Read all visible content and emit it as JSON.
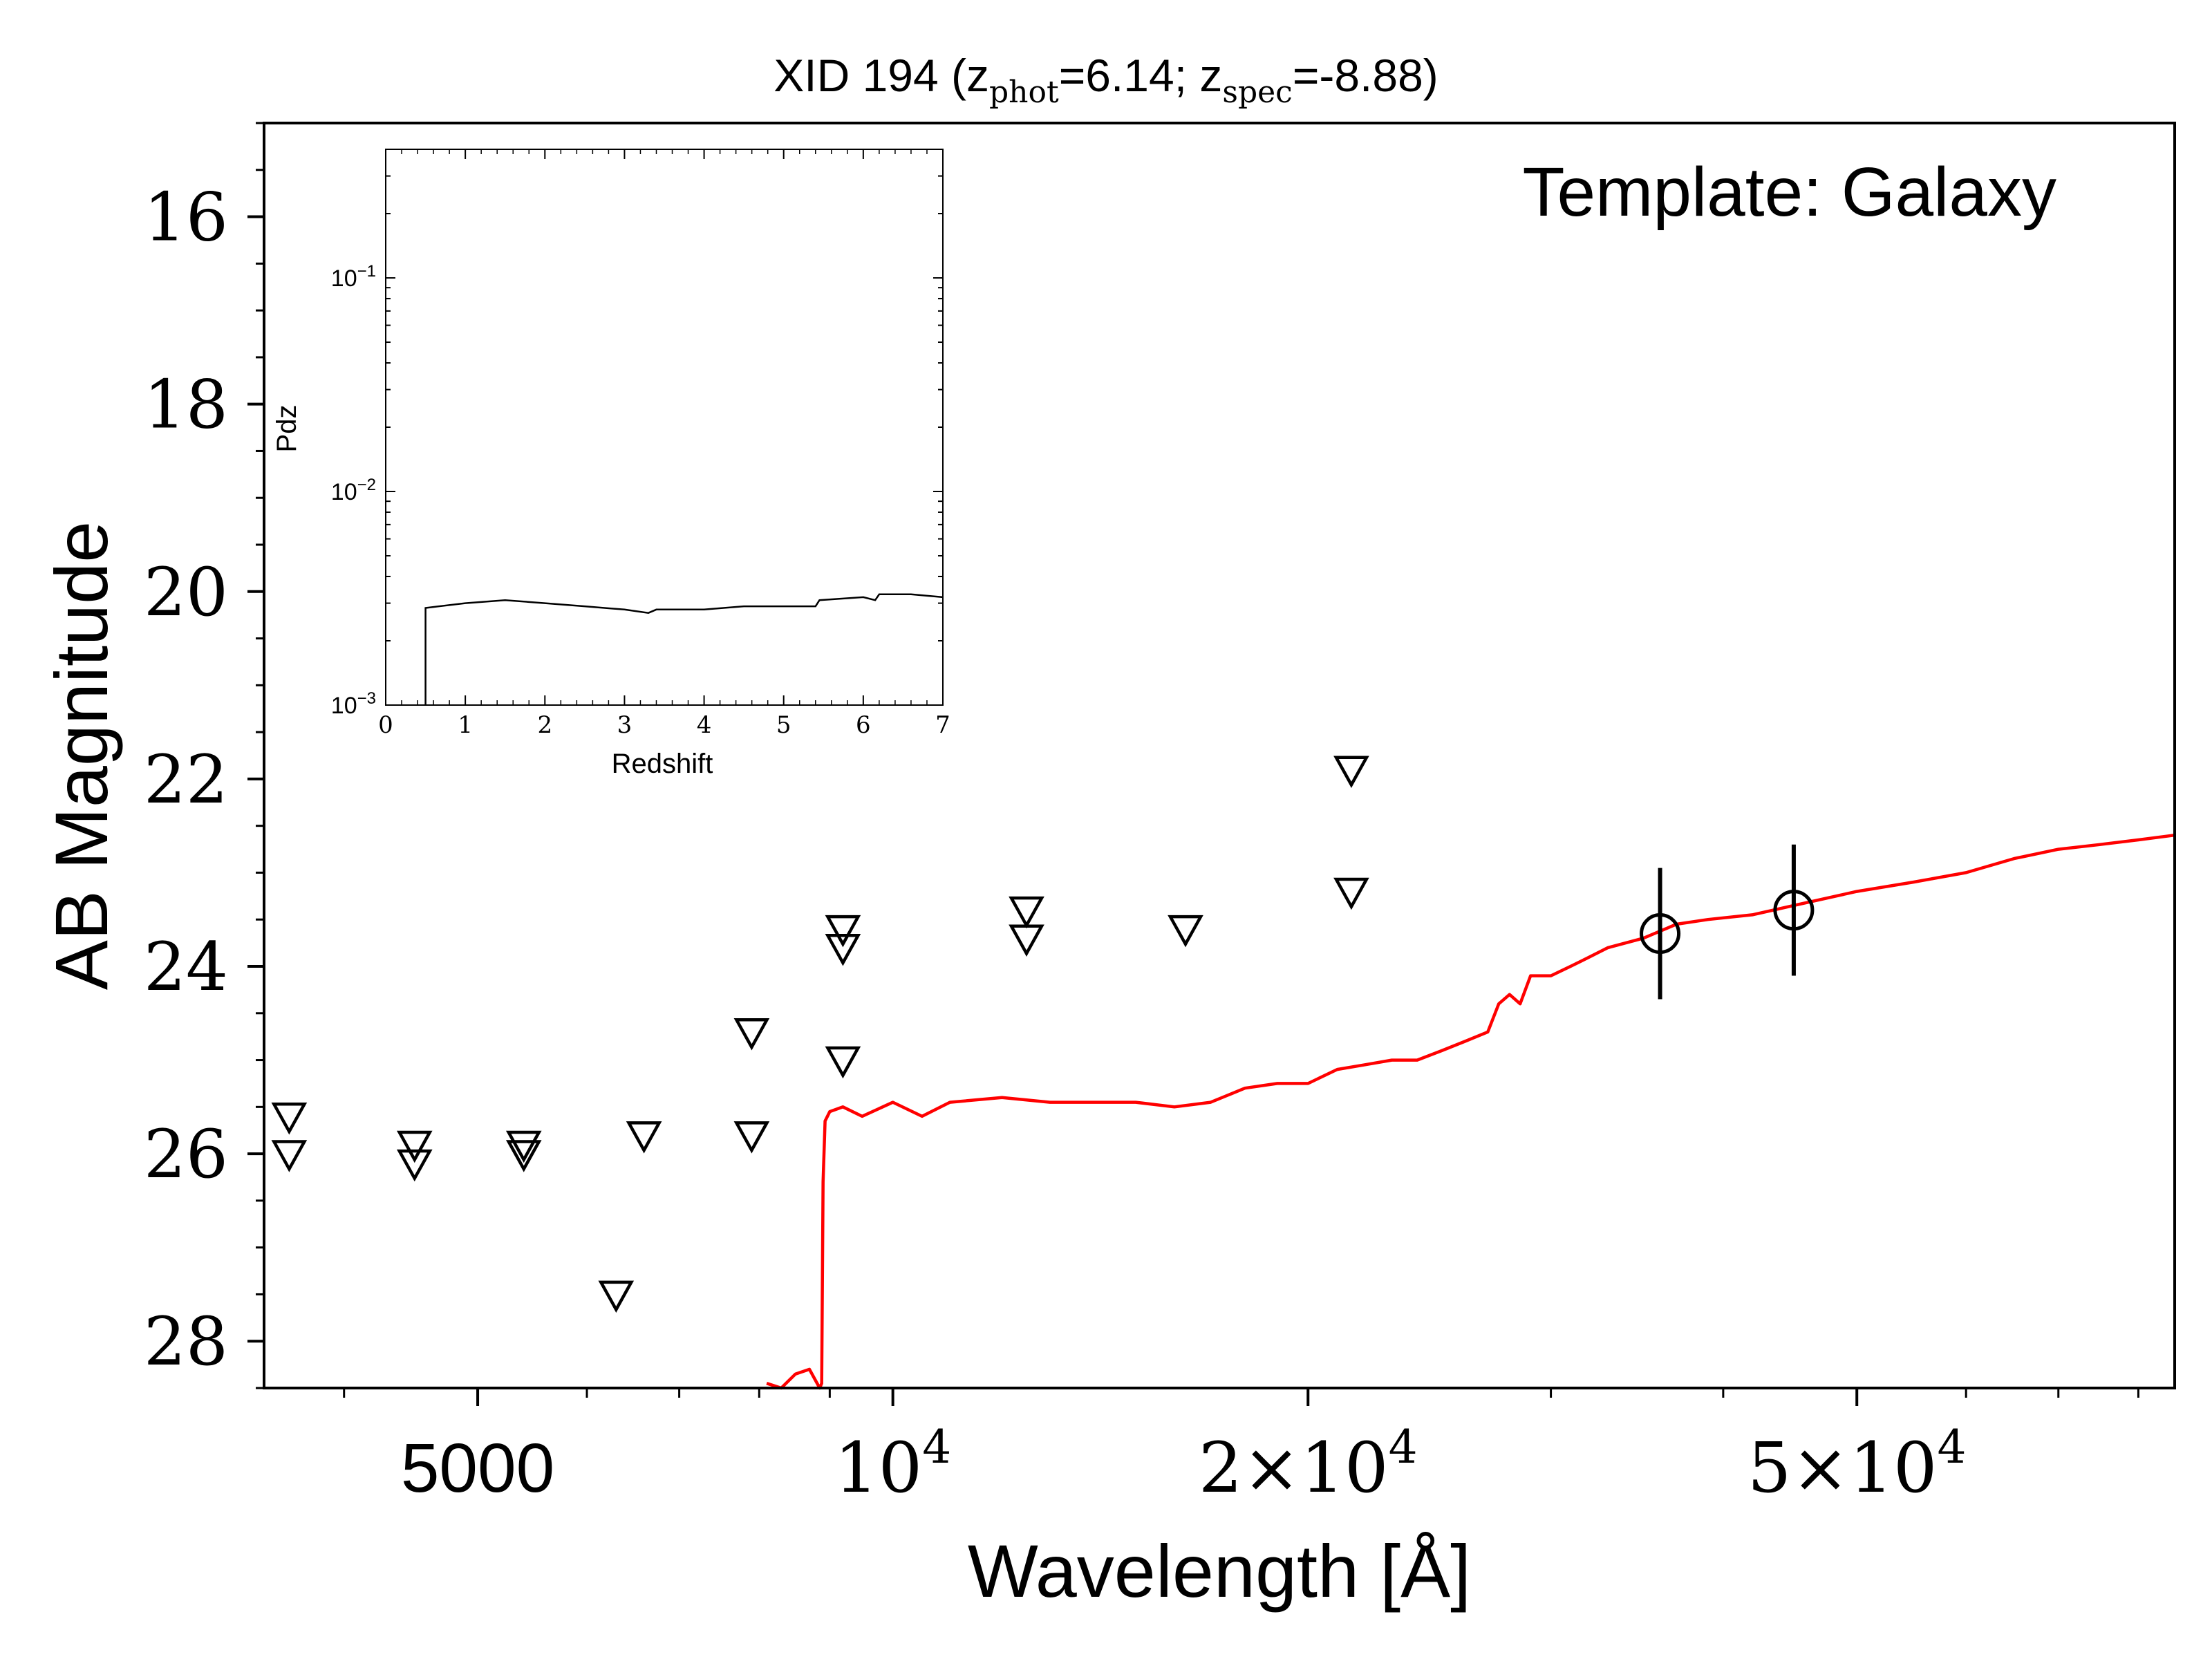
{
  "chart_data": [
    {
      "type": "scatter",
      "title": {
        "main": "XID 194 (z",
        "sub1": "phot",
        "mid": "=6.14; z",
        "sub2": "spec",
        "end": "=-8.88)"
      },
      "xlabel": "Wavelength [Å]",
      "ylabel": "AB Magnitude",
      "x_scale": "log",
      "y_inverted": true,
      "xlim": [
        3500,
        85000
      ],
      "ylim": [
        28.5,
        15.0
      ],
      "y_ticks": [
        {
          "value": 16,
          "label": "16"
        },
        {
          "value": 18,
          "label": "18"
        },
        {
          "value": 20,
          "label": "20"
        },
        {
          "value": 22,
          "label": "22"
        },
        {
          "value": 24,
          "label": "24"
        },
        {
          "value": 26,
          "label": "26"
        },
        {
          "value": 28,
          "label": "28"
        }
      ],
      "x_ticks": [
        {
          "value": 5000,
          "label": "5000"
        },
        {
          "value": 10000,
          "label": "10",
          "exp": "4"
        },
        {
          "value": 20000,
          "label": "2×10",
          "exp": "4"
        },
        {
          "value": 50000,
          "label": "5×10",
          "exp": "4"
        }
      ],
      "annotation": "Template: Galaxy",
      "grid": false,
      "series": [
        {
          "kind": "upper_limits",
          "marker": "triangle-down",
          "points": [
            {
              "x": 3650,
              "y": 25.6
            },
            {
              "x": 3650,
              "y": 26.0
            },
            {
              "x": 4500,
              "y": 25.9
            },
            {
              "x": 4500,
              "y": 26.1
            },
            {
              "x": 5400,
              "y": 25.9
            },
            {
              "x": 5400,
              "y": 26.0
            },
            {
              "x": 6300,
              "y": 27.5
            },
            {
              "x": 6600,
              "y": 25.8
            },
            {
              "x": 7900,
              "y": 24.7
            },
            {
              "x": 7900,
              "y": 25.8
            },
            {
              "x": 9200,
              "y": 23.6
            },
            {
              "x": 9200,
              "y": 23.8
            },
            {
              "x": 9200,
              "y": 25.0
            },
            {
              "x": 12500,
              "y": 23.4
            },
            {
              "x": 12500,
              "y": 23.7
            },
            {
              "x": 16300,
              "y": 23.6
            },
            {
              "x": 21500,
              "y": 21.9
            },
            {
              "x": 21500,
              "y": 23.2
            }
          ]
        },
        {
          "kind": "detections",
          "marker": "circle-open",
          "points": [
            {
              "x": 36000,
              "y": 23.65,
              "yerr": 0.7
            },
            {
              "x": 45000,
              "y": 23.4,
              "yerr": 0.7
            }
          ]
        },
        {
          "kind": "template",
          "color": "#ff0000",
          "points": [
            [
              8100,
              28.45
            ],
            [
              8300,
              28.5
            ],
            [
              8500,
              28.35
            ],
            [
              8700,
              28.3
            ],
            [
              8850,
              28.5
            ],
            [
              8880,
              28.45
            ],
            [
              8900,
              26.3
            ],
            [
              8930,
              25.65
            ],
            [
              9000,
              25.55
            ],
            [
              9200,
              25.5
            ],
            [
              9500,
              25.6
            ],
            [
              10000,
              25.45
            ],
            [
              10500,
              25.6
            ],
            [
              11000,
              25.45
            ],
            [
              12000,
              25.4
            ],
            [
              13000,
              25.45
            ],
            [
              14000,
              25.45
            ],
            [
              15000,
              25.45
            ],
            [
              16000,
              25.5
            ],
            [
              17000,
              25.45
            ],
            [
              18000,
              25.3
            ],
            [
              19000,
              25.25
            ],
            [
              20000,
              25.25
            ],
            [
              21000,
              25.1
            ],
            [
              22000,
              25.05
            ],
            [
              23000,
              25.0
            ],
            [
              24000,
              25.0
            ],
            [
              25000,
              24.9
            ],
            [
              26000,
              24.8
            ],
            [
              27000,
              24.7
            ],
            [
              27500,
              24.4
            ],
            [
              28000,
              24.3
            ],
            [
              28500,
              24.4
            ],
            [
              29000,
              24.1
            ],
            [
              30000,
              24.1
            ],
            [
              31000,
              24.0
            ],
            [
              32000,
              23.9
            ],
            [
              33000,
              23.8
            ],
            [
              35000,
              23.7
            ],
            [
              37000,
              23.55
            ],
            [
              39000,
              23.5
            ],
            [
              42000,
              23.45
            ],
            [
              45000,
              23.35
            ],
            [
              50000,
              23.2
            ],
            [
              55000,
              23.1
            ],
            [
              60000,
              23.0
            ],
            [
              65000,
              22.85
            ],
            [
              70000,
              22.75
            ],
            [
              75000,
              22.7
            ],
            [
              80000,
              22.65
            ],
            [
              85000,
              22.6
            ]
          ]
        }
      ]
    },
    {
      "type": "line",
      "xlabel": "Redshift",
      "ylabel": "Pdz",
      "y_scale": "log",
      "xlim": [
        0,
        7
      ],
      "ylim": [
        0.001,
        0.4
      ],
      "x_ticks": [
        "0",
        "1",
        "2",
        "3",
        "4",
        "5",
        "6",
        "7"
      ],
      "y_ticks": [
        {
          "value": 0.1,
          "label": "10",
          "exp": "−1"
        },
        {
          "value": 0.01,
          "label": "10",
          "exp": "−2"
        },
        {
          "value": 0.001,
          "label": "10",
          "exp": "−3"
        }
      ],
      "points": [
        [
          0.5,
          0.001
        ],
        [
          0.5,
          0.00285
        ],
        [
          1.0,
          0.003
        ],
        [
          1.5,
          0.0031
        ],
        [
          2.0,
          0.003
        ],
        [
          2.5,
          0.0029
        ],
        [
          3.0,
          0.0028
        ],
        [
          3.3,
          0.0027
        ],
        [
          3.4,
          0.0028
        ],
        [
          4.0,
          0.0028
        ],
        [
          4.5,
          0.0029
        ],
        [
          5.0,
          0.0029
        ],
        [
          5.4,
          0.0029
        ],
        [
          5.45,
          0.0031
        ],
        [
          6.0,
          0.0032
        ],
        [
          6.15,
          0.0031
        ],
        [
          6.2,
          0.0033
        ],
        [
          6.6,
          0.0033
        ],
        [
          7.0,
          0.0032
        ]
      ]
    }
  ]
}
